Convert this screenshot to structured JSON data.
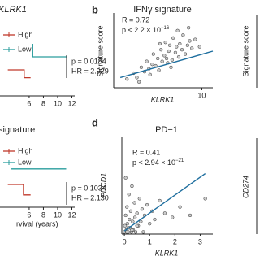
{
  "chart_data": [
    {
      "type": "line",
      "title": "KLRK1",
      "xlim": [
        1.9,
        12.4
      ],
      "ylim": [
        0,
        1
      ],
      "xticks": [
        6,
        8,
        10,
        12
      ],
      "series": [
        {
          "name": "High",
          "color": "#c0392b",
          "x": [
            3,
            5.3,
            5.3,
            6.2
          ],
          "values": [
            0.4,
            0.4,
            0.28,
            0.28
          ]
        },
        {
          "name": "Low",
          "color": "#2a9d9d",
          "x": [
            6.5,
            6.5,
            11.2
          ],
          "values": [
            0.8,
            0.6,
            0.6
          ]
        }
      ],
      "stats": [
        "p = 0.0184",
        "HR = 2.929"
      ]
    },
    {
      "type": "scatter",
      "panel": "b",
      "title": "IFNγ signature",
      "xlabel": "KLRK1",
      "ylabel": "Signature score",
      "xlim": [
        2,
        11
      ],
      "ylim": [
        -2,
        3
      ],
      "xticks": [
        10
      ],
      "x": [
        3.2,
        3.8,
        4.1,
        4.5,
        4.8,
        5.0,
        5.2,
        5.5,
        5.6,
        5.8,
        6.0,
        6.1,
        6.3,
        6.4,
        6.6,
        6.7,
        6.9,
        7.0,
        7.1,
        7.3,
        7.4,
        7.6,
        7.7,
        7.9,
        8.0,
        8.2,
        8.3,
        8.5,
        8.7,
        8.9,
        9.1,
        9.4,
        9.8,
        5.3,
        6.2,
        7.2,
        7.8,
        4.3,
        8.8,
        6.8
      ],
      "values": [
        -1.4,
        -1.0,
        -1.3,
        -0.6,
        -0.9,
        -0.2,
        -0.7,
        -0.4,
        0.3,
        -0.5,
        0.0,
        -0.8,
        0.6,
        -0.2,
        0.2,
        1.1,
        -0.3,
        0.5,
        0.9,
        -0.1,
        1.4,
        0.4,
        0.8,
        0.1,
        1.0,
        0.6,
        1.6,
        0.3,
        0.9,
        1.2,
        0.7,
        1.3,
        0.8,
        -1.1,
        1.0,
        -0.6,
        1.9,
        -1.6,
        2.1,
        0.0
      ],
      "fit": {
        "x": [
          2.6,
          11
        ],
        "values": [
          -1.3,
          0.5
        ]
      },
      "r_text": "R = 0.72",
      "p_text": "p < 2.2 × 10",
      "p_exp": "−16"
    },
    {
      "type": "line",
      "title": "signature",
      "xlabel": "rvival (years)",
      "xlim": [
        1.9,
        12.4
      ],
      "ylim": [
        0,
        1
      ],
      "xticks": [
        6,
        8,
        10,
        12
      ],
      "series": [
        {
          "name": "High",
          "color": "#c0392b",
          "x": [
            3,
            5.2,
            5.2,
            6.2
          ],
          "values": [
            0.35,
            0.35,
            0.19,
            0.19
          ]
        },
        {
          "name": "Low",
          "color": "#2a9d9d",
          "x": [
            3.5,
            11.2
          ],
          "values": [
            0.59,
            0.59
          ]
        }
      ],
      "stats": [
        "p = 0.1034",
        "HR = 2.130"
      ]
    },
    {
      "type": "scatter",
      "panel": "d",
      "title": "PD−1",
      "xlabel": "KLRK1",
      "ylabel": "PDCD1",
      "xlim": [
        -0.1,
        3.5
      ],
      "ylim": [
        -0.1,
        4.5
      ],
      "xticks": [
        0,
        1,
        2,
        3
      ],
      "x": [
        0.0,
        0.02,
        0.05,
        0.08,
        0.1,
        0.12,
        0.15,
        0.18,
        0.2,
        0.22,
        0.25,
        0.28,
        0.3,
        0.33,
        0.35,
        0.4,
        0.42,
        0.45,
        0.5,
        0.55,
        0.6,
        0.65,
        0.7,
        0.75,
        0.8,
        0.9,
        1.0,
        1.1,
        1.2,
        1.4,
        1.6,
        1.9,
        2.2,
        2.6,
        3.2,
        0.05,
        0.15,
        0.3,
        0.5,
        0.1
      ],
      "values": [
        0.0,
        0.3,
        0.8,
        0.1,
        1.2,
        0.4,
        0.0,
        1.8,
        0.6,
        0.2,
        1.0,
        0.0,
        2.2,
        0.5,
        0.1,
        1.4,
        0.7,
        0.0,
        0.9,
        0.3,
        1.6,
        0.5,
        1.1,
        0.0,
        0.8,
        1.3,
        0.4,
        1.0,
        0.6,
        1.5,
        0.9,
        0.7,
        1.2,
        0.8,
        1.6,
        2.6,
        0.2,
        0.1,
        0.3,
        0.0
      ],
      "fit": {
        "x": [
          0,
          3.2
        ],
        "values": [
          0.05,
          2.8
        ]
      },
      "r_text": "R = 0.41",
      "p_text": "p < 2.94 × 10",
      "p_exp": "−21"
    }
  ],
  "cropped_labels": [
    "Signature score",
    "CD274"
  ]
}
